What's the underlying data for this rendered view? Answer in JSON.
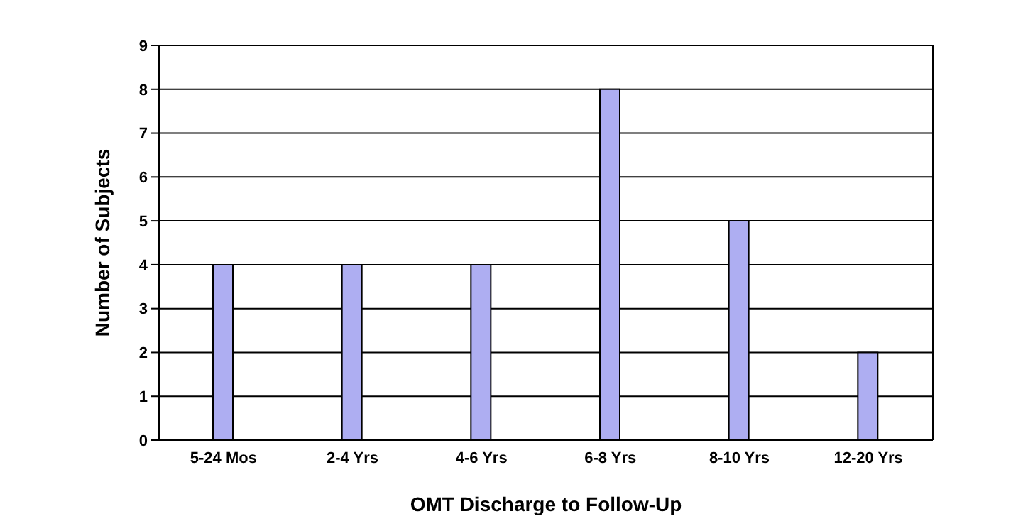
{
  "chart_data": {
    "type": "bar",
    "xlabel": "OMT Discharge to Follow-Up",
    "ylabel": "Number of Subjects",
    "categories": [
      "5-24 Mos",
      "2-4 Yrs",
      "4-6 Yrs",
      "6-8 Yrs",
      "8-10 Yrs",
      "12-20 Yrs"
    ],
    "values": [
      4,
      4,
      4,
      8,
      5,
      2
    ],
    "color": "#aeaef2",
    "ylim": [
      0,
      9
    ],
    "yticks": [
      0,
      1,
      2,
      3,
      4,
      5,
      6,
      7,
      8,
      9
    ],
    "grid": "y"
  }
}
